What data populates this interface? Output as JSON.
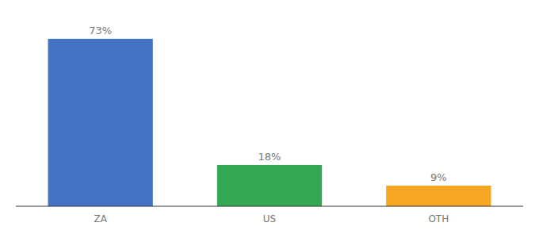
{
  "chart_data": {
    "type": "bar",
    "categories": [
      "ZA",
      "US",
      "OTH"
    ],
    "values": [
      73,
      18,
      9
    ],
    "value_labels": [
      "73%",
      "18%",
      "9%"
    ],
    "colors": [
      "#4472C4",
      "#34A853",
      "#F5A623"
    ],
    "ylim": [
      0,
      83
    ],
    "grid": false,
    "data_labels": true,
    "tick_labels": "x"
  }
}
